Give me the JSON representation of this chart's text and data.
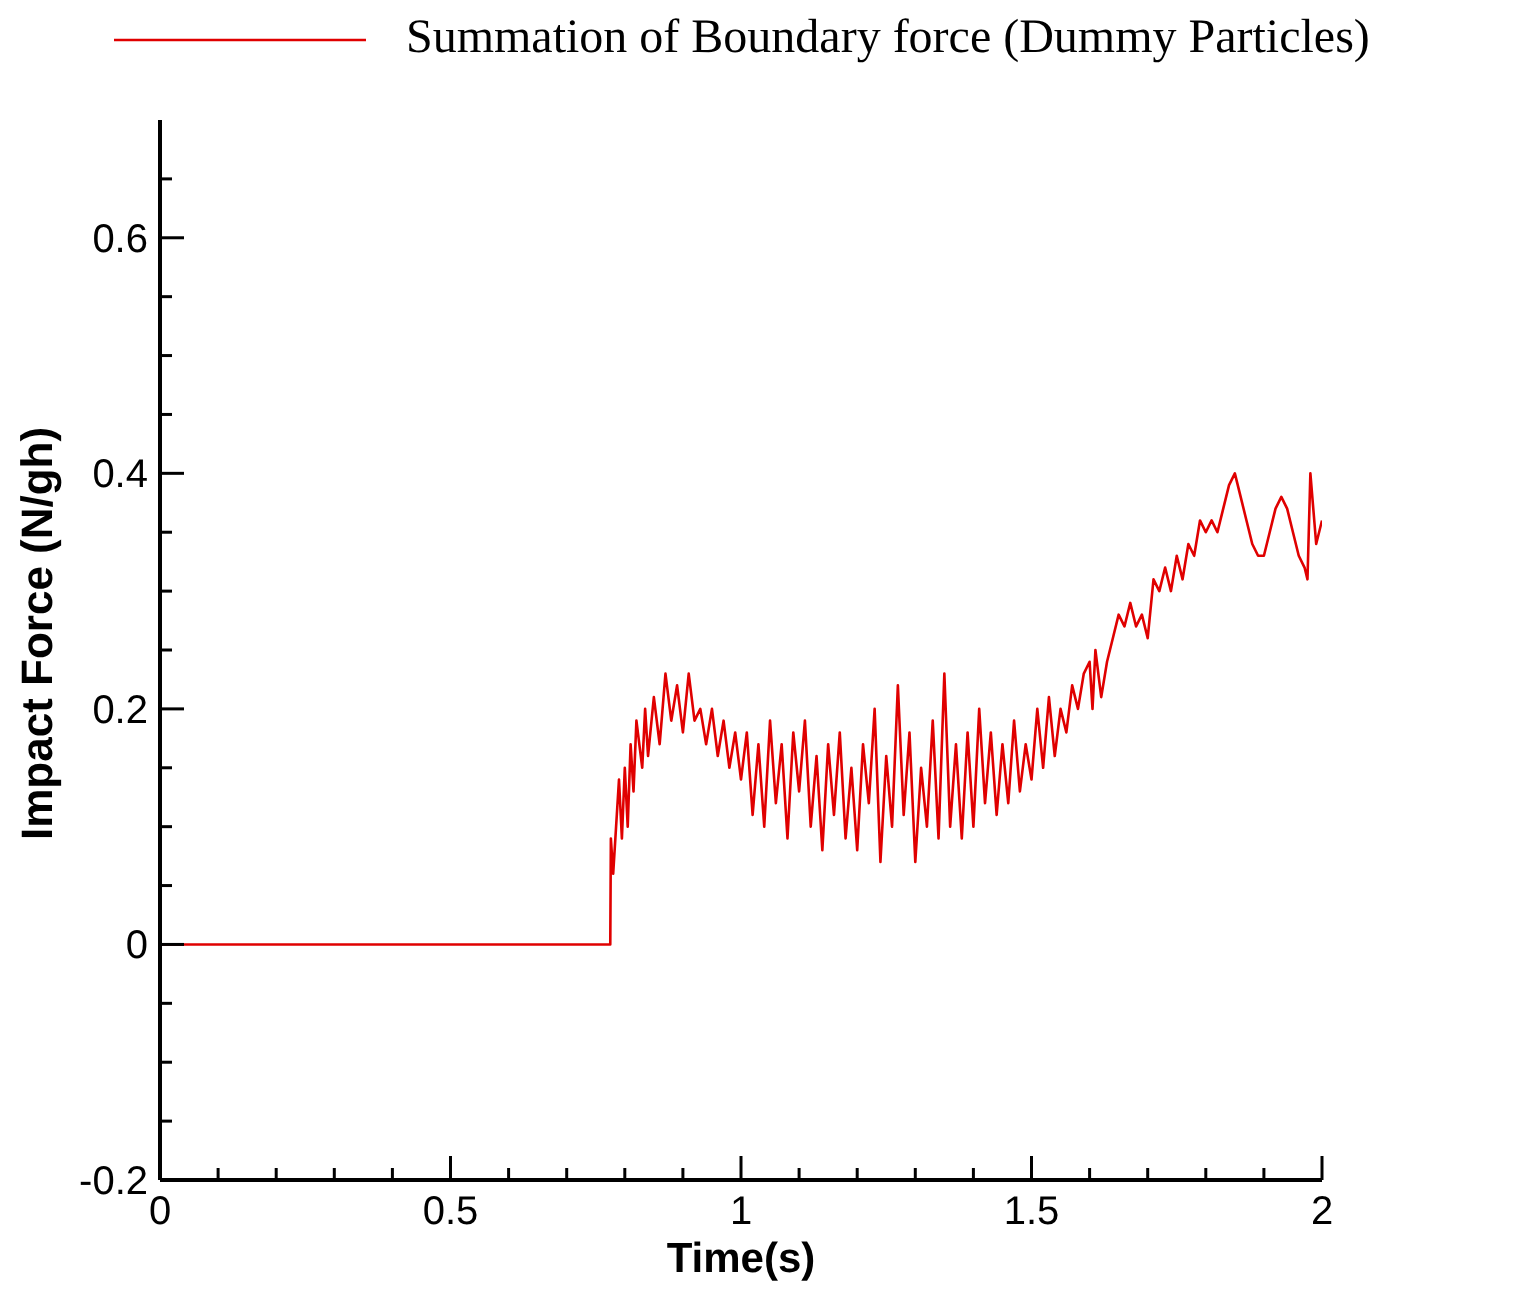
{
  "chart_data": {
    "type": "line",
    "xlabel": "Time(s)",
    "ylabel": "Impact Force (N/gh)",
    "legend": "top",
    "marker": "none",
    "line_style": "solid",
    "xlim": [
      0,
      2
    ],
    "ylim": [
      -0.2,
      0.7
    ],
    "xticks": [
      0,
      {
        "value": 0.1,
        "label": null
      },
      {
        "value": 0.2,
        "label": null
      },
      {
        "value": 0.3,
        "label": null
      },
      {
        "value": 0.4,
        "label": null
      },
      0.5,
      {
        "value": 0.6,
        "label": null
      },
      {
        "value": 0.7,
        "label": null
      },
      {
        "value": 0.8,
        "label": null
      },
      {
        "value": 0.9,
        "label": null
      },
      1,
      {
        "value": 1.1,
        "label": null
      },
      {
        "value": 1.2,
        "label": null
      },
      {
        "value": 1.3,
        "label": null
      },
      {
        "value": 1.4,
        "label": null
      },
      1.5,
      {
        "value": 1.6,
        "label": null
      },
      {
        "value": 1.7,
        "label": null
      },
      {
        "value": 1.8,
        "label": null
      },
      {
        "value": 1.9,
        "label": null
      },
      2
    ],
    "yticks": [
      -0.2,
      {
        "value": -0.15,
        "label": null
      },
      {
        "value": -0.1,
        "label": null
      },
      {
        "value": -0.05,
        "label": null
      },
      0,
      {
        "value": 0.05,
        "label": null
      },
      {
        "value": 0.1,
        "label": null
      },
      {
        "value": 0.15,
        "label": null
      },
      0.2,
      {
        "value": 0.25,
        "label": null
      },
      {
        "value": 0.3,
        "label": null
      },
      {
        "value": 0.35,
        "label": null
      },
      0.4,
      {
        "value": 0.45,
        "label": null
      },
      {
        "value": 0.5,
        "label": null
      },
      {
        "value": 0.55,
        "label": null
      },
      0.6,
      {
        "value": 0.65,
        "label": null
      }
    ],
    "series": [
      {
        "name": "Summation of Boundary force (Dummy Particles)",
        "color": "#e00000",
        "x": [
          0,
          0.775,
          0.776,
          0.78,
          0.785,
          0.79,
          0.795,
          0.8,
          0.805,
          0.81,
          0.815,
          0.82,
          0.83,
          0.835,
          0.84,
          0.85,
          0.86,
          0.87,
          0.88,
          0.89,
          0.9,
          0.91,
          0.92,
          0.93,
          0.94,
          0.95,
          0.96,
          0.97,
          0.98,
          0.99,
          1,
          1.01,
          1.02,
          1.03,
          1.04,
          1.05,
          1.06,
          1.07,
          1.08,
          1.09,
          1.1,
          1.11,
          1.12,
          1.13,
          1.14,
          1.15,
          1.16,
          1.17,
          1.18,
          1.19,
          1.2,
          1.21,
          1.22,
          1.23,
          1.24,
          1.25,
          1.26,
          1.27,
          1.28,
          1.29,
          1.3,
          1.31,
          1.32,
          1.33,
          1.34,
          1.35,
          1.36,
          1.37,
          1.38,
          1.39,
          1.4,
          1.41,
          1.42,
          1.43,
          1.44,
          1.45,
          1.46,
          1.47,
          1.48,
          1.49,
          1.5,
          1.51,
          1.52,
          1.53,
          1.54,
          1.55,
          1.56,
          1.57,
          1.58,
          1.59,
          1.6,
          1.605,
          1.61,
          1.62,
          1.63,
          1.64,
          1.65,
          1.66,
          1.67,
          1.68,
          1.69,
          1.7,
          1.71,
          1.72,
          1.73,
          1.74,
          1.75,
          1.76,
          1.77,
          1.78,
          1.79,
          1.8,
          1.81,
          1.82,
          1.83,
          1.84,
          1.85,
          1.86,
          1.87,
          1.88,
          1.89,
          1.9,
          1.91,
          1.92,
          1.93,
          1.94,
          1.95,
          1.96,
          1.97,
          1.975,
          1.98,
          1.99,
          2
        ],
        "values": [
          0,
          0,
          0.09,
          0.06,
          0.1,
          0.14,
          0.09,
          0.15,
          0.1,
          0.17,
          0.13,
          0.19,
          0.15,
          0.2,
          0.16,
          0.21,
          0.17,
          0.23,
          0.19,
          0.22,
          0.18,
          0.23,
          0.19,
          0.2,
          0.17,
          0.2,
          0.16,
          0.19,
          0.15,
          0.18,
          0.14,
          0.18,
          0.11,
          0.17,
          0.1,
          0.19,
          0.12,
          0.17,
          0.09,
          0.18,
          0.13,
          0.19,
          0.1,
          0.16,
          0.08,
          0.17,
          0.11,
          0.18,
          0.09,
          0.15,
          0.08,
          0.17,
          0.12,
          0.2,
          0.07,
          0.16,
          0.1,
          0.22,
          0.11,
          0.18,
          0.07,
          0.15,
          0.1,
          0.19,
          0.09,
          0.23,
          0.1,
          0.17,
          0.09,
          0.18,
          0.1,
          0.2,
          0.12,
          0.18,
          0.11,
          0.17,
          0.12,
          0.19,
          0.13,
          0.17,
          0.14,
          0.2,
          0.15,
          0.21,
          0.16,
          0.2,
          0.18,
          0.22,
          0.2,
          0.23,
          0.24,
          0.2,
          0.25,
          0.21,
          0.24,
          0.26,
          0.28,
          0.27,
          0.29,
          0.27,
          0.28,
          0.26,
          0.31,
          0.3,
          0.32,
          0.3,
          0.33,
          0.31,
          0.34,
          0.33,
          0.36,
          0.35,
          0.36,
          0.35,
          0.37,
          0.39,
          0.4,
          0.38,
          0.36,
          0.34,
          0.33,
          0.33,
          0.35,
          0.37,
          0.38,
          0.37,
          0.35,
          0.33,
          0.32,
          0.31,
          0.4,
          0.34,
          0.36
        ]
      }
    ]
  }
}
